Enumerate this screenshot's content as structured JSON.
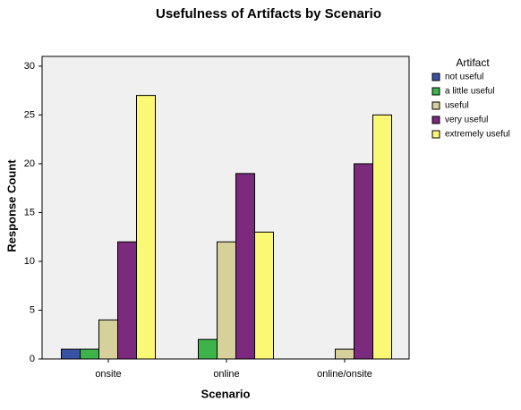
{
  "chart_data": {
    "type": "bar",
    "title": "Usefulness of Artifacts by Scenario",
    "x_label": "Scenario",
    "y_label": "Response Count",
    "legend_title": "Artifact",
    "legend": "right",
    "categories": [
      "onsite",
      "online",
      "online/onsite"
    ],
    "series": [
      {
        "name": "not useful",
        "color": "#3953a4",
        "values": [
          1,
          0,
          0
        ]
      },
      {
        "name": "a little useful",
        "color": "#3cb44a",
        "values": [
          1,
          2,
          0
        ]
      },
      {
        "name": "useful",
        "color": "#d6d09b",
        "values": [
          4,
          12,
          1
        ]
      },
      {
        "name": "very useful",
        "color": "#7b2a7d",
        "values": [
          12,
          19,
          20
        ]
      },
      {
        "name": "extremely useful",
        "color": "#fbf876",
        "values": [
          27,
          13,
          25
        ]
      }
    ],
    "ylim": [
      0,
      31
    ],
    "yticks": [
      0,
      5,
      10,
      15,
      20,
      25,
      30
    ]
  }
}
